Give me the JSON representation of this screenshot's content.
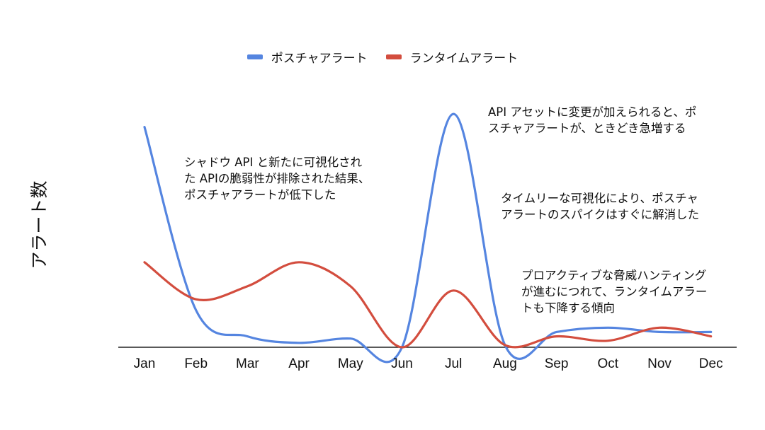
{
  "chart_data": {
    "type": "line",
    "ylabel": "アラート数",
    "categories": [
      "Jan",
      "Feb",
      "Mar",
      "Apr",
      "May",
      "Jun",
      "Jul",
      "Aug",
      "Sep",
      "Oct",
      "Nov",
      "Dec"
    ],
    "series": [
      {
        "name": "ポスチャアラート",
        "color": "#5585e0",
        "values": [
          101,
          17,
          5,
          2,
          4,
          0,
          107,
          1,
          7,
          9,
          7,
          7
        ]
      },
      {
        "name": "ランタイムアラート",
        "color": "#d34d3e",
        "values": [
          39,
          22,
          28,
          39,
          28,
          0,
          26,
          1,
          5,
          3,
          9,
          5
        ]
      }
    ],
    "ylim": [
      0,
      120
    ],
    "legend": "top-center",
    "grid": false
  },
  "annotations": [
    {
      "text": "シャドウ API と新たに可視化され\nた APIの脆弱性が排除された結果、\nポスチャアラートが低下した"
    },
    {
      "text": "API アセットに変更が加えられると、ポ\nスチャアラートが、ときどき急増する"
    },
    {
      "text": "タイムリーな可視化により、ポスチャ\nアラートのスパイクはすぐに解消した"
    },
    {
      "text": "プロアクティブな脅威ハンティング\nが進むにつれて、ランタイムアラー\nトも下降する傾向"
    }
  ]
}
